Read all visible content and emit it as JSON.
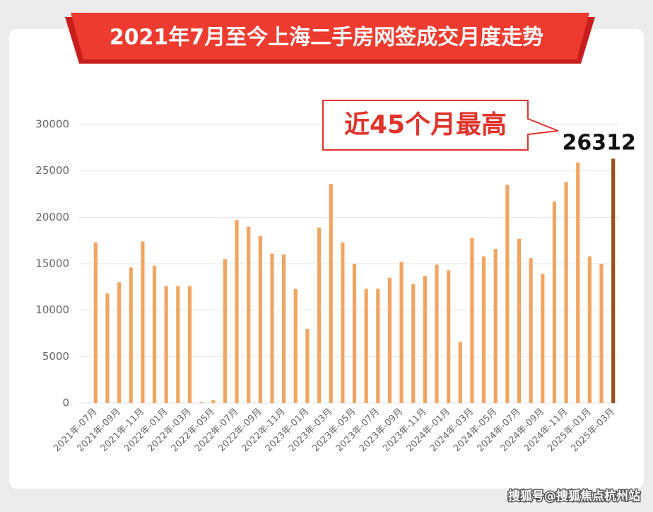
{
  "chart_data": {
    "type": "bar",
    "title": "2021年7月至今上海二手房网签成交月度走势",
    "annotation": "近45个月最高",
    "categories": [
      "2021年-07月",
      null,
      "2021年-09月",
      null,
      "2021年-11月",
      null,
      "2022年-01月",
      null,
      "2022年-03月",
      null,
      "2022年-05月",
      null,
      "2022年-07月",
      null,
      "2022年-09月",
      null,
      "2022年-11月",
      null,
      "2023年-01月",
      null,
      "2023年-03月",
      null,
      "2023年-05月",
      null,
      "2023年-07月",
      null,
      "2023年-09月",
      null,
      "2023年-11月",
      null,
      "2024年-01月",
      null,
      "2024年-03月",
      null,
      "2024年-05月",
      null,
      "2024年-07月",
      null,
      "2024年-09月",
      null,
      "2024年-11月",
      null,
      "2025年-01月",
      null,
      "2025年-03月"
    ],
    "values": [
      17300,
      11800,
      13000,
      14600,
      17400,
      14800,
      12600,
      12600,
      12600,
      100,
      300,
      15500,
      19700,
      19000,
      18000,
      16100,
      16000,
      12300,
      8000,
      18900,
      23600,
      17300,
      15000,
      12300,
      12300,
      13500,
      15200,
      12800,
      13700,
      14900,
      14300,
      6600,
      17800,
      15800,
      16600,
      23500,
      17700,
      15600,
      13900,
      21700,
      23800,
      25900,
      15800,
      15000,
      26312
    ],
    "color": "#f0a562",
    "highlight_color": "#9a4f1a",
    "ylim": [
      0,
      30000
    ],
    "yticks": [
      0,
      5000,
      10000,
      15000,
      20000,
      25000,
      30000
    ],
    "grid": true
  },
  "watermark": "搜狐号@搜狐焦点杭州站"
}
